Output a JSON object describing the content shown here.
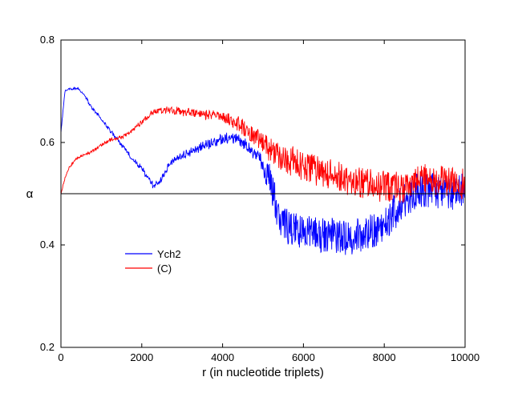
{
  "chart_data": {
    "type": "line",
    "title": "",
    "xlabel": "r (in nucleotide triplets)",
    "ylabel": "α",
    "xlim": [
      0,
      10000
    ],
    "ylim": [
      0.2,
      0.8
    ],
    "x_ticks": [
      0,
      2000,
      4000,
      6000,
      8000,
      10000
    ],
    "y_ticks": [
      0.2,
      0.4,
      0.6,
      0.8
    ],
    "x_tick_labels": [
      "0",
      "2000",
      "4000",
      "6000",
      "8000",
      "10000"
    ],
    "y_tick_labels": [
      "0.2",
      "0.4",
      "0.6",
      "0.8"
    ],
    "reference_line": {
      "y": 0.5,
      "color": "#000000"
    },
    "legend_position": "middle-left",
    "series": [
      {
        "name": "Ych2",
        "color": "#0000ff",
        "noise_spans": [
          [
            0,
            0.0
          ],
          [
            4800,
            0.012
          ],
          [
            5200,
            0.035
          ],
          [
            7000,
            0.035
          ],
          [
            10000,
            0.035
          ]
        ],
        "points": [
          [
            0,
            0.62
          ],
          [
            50,
            0.66
          ],
          [
            100,
            0.7
          ],
          [
            200,
            0.705
          ],
          [
            300,
            0.705
          ],
          [
            400,
            0.705
          ],
          [
            500,
            0.7
          ],
          [
            600,
            0.69
          ],
          [
            700,
            0.675
          ],
          [
            800,
            0.665
          ],
          [
            900,
            0.655
          ],
          [
            1000,
            0.645
          ],
          [
            1200,
            0.625
          ],
          [
            1400,
            0.605
          ],
          [
            1600,
            0.585
          ],
          [
            1800,
            0.565
          ],
          [
            2000,
            0.55
          ],
          [
            2200,
            0.525
          ],
          [
            2300,
            0.515
          ],
          [
            2400,
            0.52
          ],
          [
            2500,
            0.53
          ],
          [
            2700,
            0.56
          ],
          [
            3000,
            0.575
          ],
          [
            3300,
            0.585
          ],
          [
            3600,
            0.595
          ],
          [
            3900,
            0.605
          ],
          [
            4200,
            0.61
          ],
          [
            4400,
            0.605
          ],
          [
            4600,
            0.595
          ],
          [
            4800,
            0.575
          ],
          [
            5000,
            0.555
          ],
          [
            5200,
            0.52
          ],
          [
            5350,
            0.47
          ],
          [
            5500,
            0.44
          ],
          [
            5700,
            0.43
          ],
          [
            6000,
            0.425
          ],
          [
            6500,
            0.42
          ],
          [
            7000,
            0.415
          ],
          [
            7500,
            0.42
          ],
          [
            7800,
            0.43
          ],
          [
            8000,
            0.44
          ],
          [
            8200,
            0.46
          ],
          [
            8500,
            0.49
          ],
          [
            8800,
            0.505
          ],
          [
            9000,
            0.505
          ],
          [
            9500,
            0.505
          ],
          [
            10000,
            0.505
          ]
        ]
      },
      {
        "name": "(C)",
        "color": "#ff0000",
        "noise_spans": [
          [
            0,
            0.0
          ],
          [
            1600,
            0.003
          ],
          [
            4000,
            0.01
          ],
          [
            4800,
            0.018
          ],
          [
            5500,
            0.03
          ],
          [
            10000,
            0.03
          ]
        ],
        "points": [
          [
            0,
            0.5
          ],
          [
            100,
            0.53
          ],
          [
            200,
            0.55
          ],
          [
            400,
            0.57
          ],
          [
            700,
            0.58
          ],
          [
            1000,
            0.595
          ],
          [
            1200,
            0.605
          ],
          [
            1500,
            0.61
          ],
          [
            1700,
            0.62
          ],
          [
            2000,
            0.64
          ],
          [
            2300,
            0.66
          ],
          [
            2600,
            0.665
          ],
          [
            3000,
            0.66
          ],
          [
            3500,
            0.655
          ],
          [
            4000,
            0.65
          ],
          [
            4300,
            0.64
          ],
          [
            4600,
            0.625
          ],
          [
            4900,
            0.605
          ],
          [
            5200,
            0.585
          ],
          [
            5500,
            0.57
          ],
          [
            6000,
            0.555
          ],
          [
            6500,
            0.54
          ],
          [
            7000,
            0.53
          ],
          [
            7500,
            0.52
          ],
          [
            8000,
            0.515
          ],
          [
            8500,
            0.51
          ],
          [
            9000,
            0.53
          ],
          [
            9500,
            0.525
          ],
          [
            10000,
            0.52
          ]
        ]
      }
    ]
  }
}
